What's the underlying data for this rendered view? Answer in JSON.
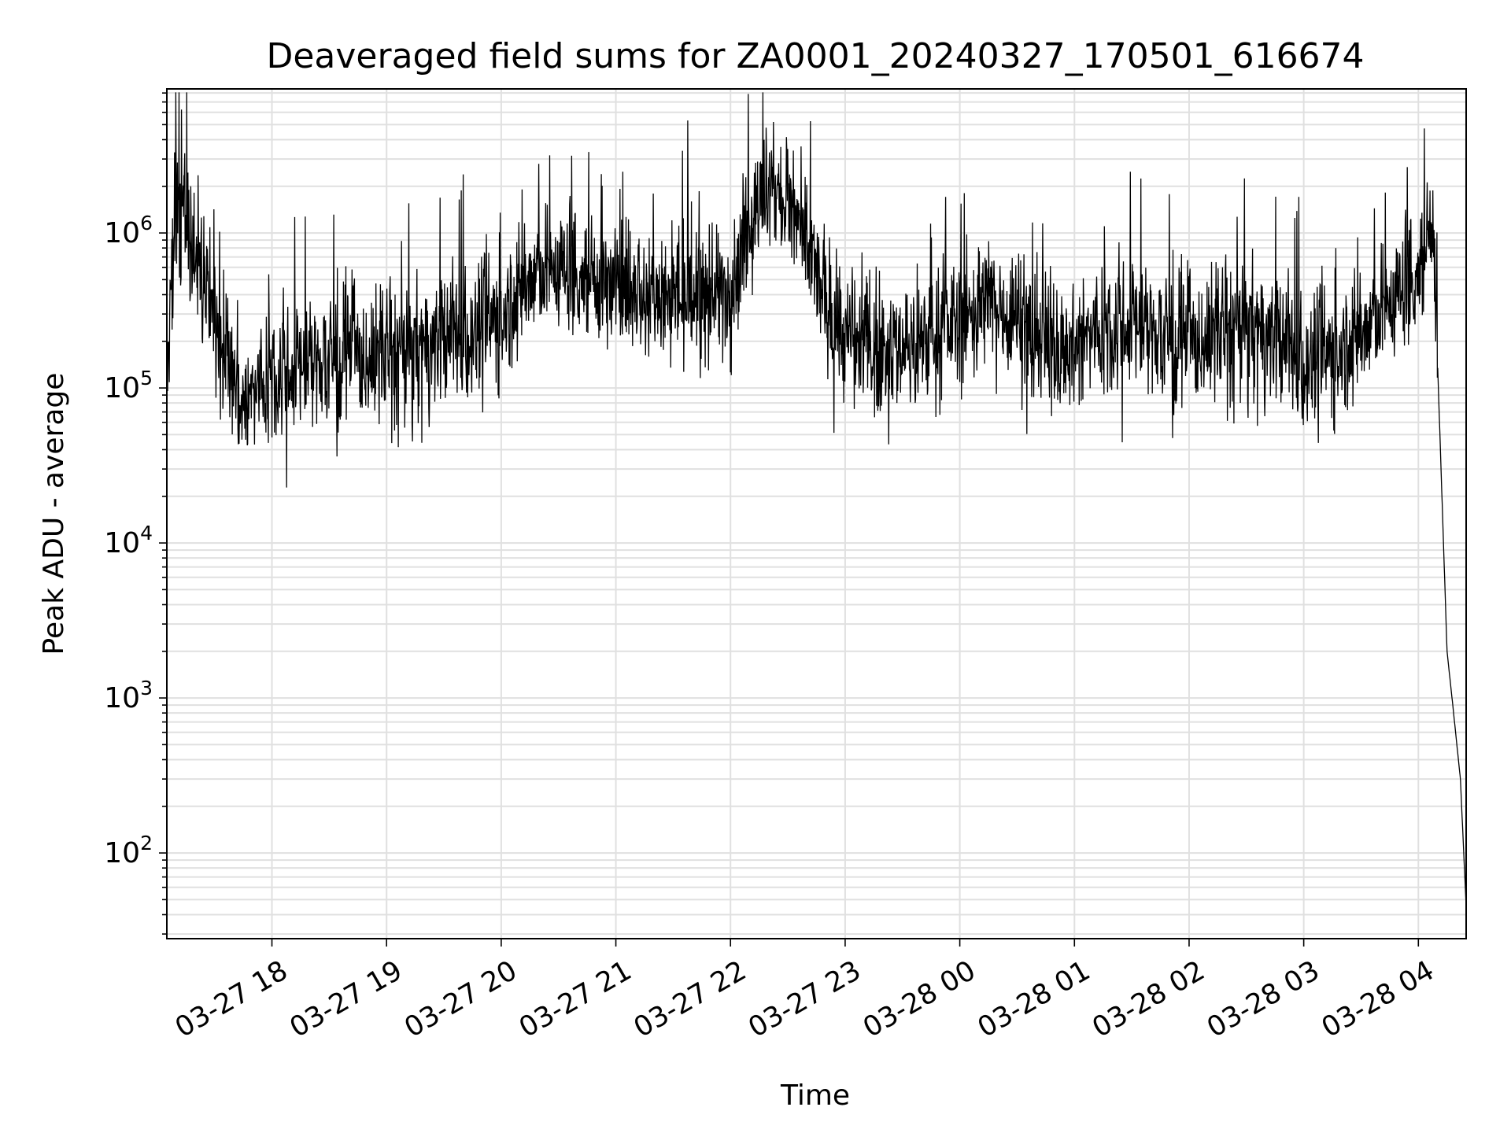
{
  "chart_data": {
    "type": "line",
    "title": "Deaveraged field sums for ZA0001_20240327_170501_616674",
    "xlabel": "Time",
    "ylabel": "Peak ADU - average",
    "yscale": "log",
    "grid": "on (major and minor)",
    "line_color": "#000000",
    "grid_color": "#e0e0e0",
    "xlim": [
      "2024-03-27 17:05",
      "2024-03-28 04:25"
    ],
    "ylim": [
      28,
      8500000
    ],
    "x_ticks": [
      {
        "t": "2024-03-27 18:00",
        "label": "03-27 18"
      },
      {
        "t": "2024-03-27 19:00",
        "label": "03-27 19"
      },
      {
        "t": "2024-03-27 20:00",
        "label": "03-27 20"
      },
      {
        "t": "2024-03-27 21:00",
        "label": "03-27 21"
      },
      {
        "t": "2024-03-27 22:00",
        "label": "03-27 22"
      },
      {
        "t": "2024-03-27 23:00",
        "label": "03-27 23"
      },
      {
        "t": "2024-03-28 00:00",
        "label": "03-28 00"
      },
      {
        "t": "2024-03-28 01:00",
        "label": "03-28 01"
      },
      {
        "t": "2024-03-28 02:00",
        "label": "03-28 02"
      },
      {
        "t": "2024-03-28 03:00",
        "label": "03-28 03"
      },
      {
        "t": "2024-03-28 04:00",
        "label": "03-28 04"
      }
    ],
    "y_ticks": [
      {
        "value": 100,
        "base": "10",
        "exp": "2"
      },
      {
        "value": 1000,
        "base": "10",
        "exp": "3"
      },
      {
        "value": 10000,
        "base": "10",
        "exp": "4"
      },
      {
        "value": 100000,
        "base": "10",
        "exp": "5"
      },
      {
        "value": 1000000,
        "base": "10",
        "exp": "6"
      }
    ],
    "series": [
      {
        "points": [
          [
            "2024-03-27 17:05",
            120000
          ],
          [
            "2024-03-27 17:10",
            1500000
          ],
          [
            "2024-03-27 17:15",
            1200000
          ],
          [
            "2024-03-27 17:20",
            700000
          ],
          [
            "2024-03-27 17:25",
            450000
          ],
          [
            "2024-03-27 17:30",
            280000
          ],
          [
            "2024-03-27 17:35",
            180000
          ],
          [
            "2024-03-27 17:40",
            110000
          ],
          [
            "2024-03-27 17:45",
            80000
          ],
          [
            "2024-03-27 17:50",
            90000
          ],
          [
            "2024-03-27 17:55",
            110000
          ],
          [
            "2024-03-27 18:00",
            130000
          ],
          [
            "2024-03-27 18:10",
            140000
          ],
          [
            "2024-03-27 18:20",
            150000
          ],
          [
            "2024-03-27 18:30",
            150000
          ],
          [
            "2024-03-27 18:40",
            160000
          ],
          [
            "2024-03-27 18:50",
            150000
          ],
          [
            "2024-03-27 19:00",
            170000
          ],
          [
            "2024-03-27 19:10",
            170000
          ],
          [
            "2024-03-27 19:20",
            180000
          ],
          [
            "2024-03-27 19:30",
            200000
          ],
          [
            "2024-03-27 19:40",
            220000
          ],
          [
            "2024-03-27 19:50",
            250000
          ],
          [
            "2024-03-27 20:00",
            300000
          ],
          [
            "2024-03-27 20:15",
            500000
          ],
          [
            "2024-03-27 20:30",
            600000
          ],
          [
            "2024-03-27 20:45",
            550000
          ],
          [
            "2024-03-27 21:00",
            450000
          ],
          [
            "2024-03-27 21:15",
            420000
          ],
          [
            "2024-03-27 21:30",
            400000
          ],
          [
            "2024-03-27 21:45",
            380000
          ],
          [
            "2024-03-27 22:00",
            450000
          ],
          [
            "2024-03-27 22:10",
            1200000
          ],
          [
            "2024-03-27 22:20",
            1800000
          ],
          [
            "2024-03-27 22:30",
            1600000
          ],
          [
            "2024-03-27 22:40",
            800000
          ],
          [
            "2024-03-27 22:50",
            350000
          ],
          [
            "2024-03-27 23:00",
            200000
          ],
          [
            "2024-03-27 23:20",
            180000
          ],
          [
            "2024-03-27 23:40",
            200000
          ],
          [
            "2024-03-28 00:00",
            280000
          ],
          [
            "2024-03-28 00:15",
            350000
          ],
          [
            "2024-03-28 00:30",
            300000
          ],
          [
            "2024-03-28 00:45",
            200000
          ],
          [
            "2024-03-28 01:00",
            180000
          ],
          [
            "2024-03-28 01:15",
            250000
          ],
          [
            "2024-03-28 01:30",
            280000
          ],
          [
            "2024-03-28 01:45",
            220000
          ],
          [
            "2024-03-28 02:00",
            180000
          ],
          [
            "2024-03-28 02:15",
            230000
          ],
          [
            "2024-03-28 02:30",
            250000
          ],
          [
            "2024-03-28 02:45",
            200000
          ],
          [
            "2024-03-28 03:00",
            150000
          ],
          [
            "2024-03-28 03:15",
            170000
          ],
          [
            "2024-03-28 03:30",
            220000
          ],
          [
            "2024-03-28 03:45",
            350000
          ],
          [
            "2024-03-28 04:00",
            600000
          ],
          [
            "2024-03-28 04:05",
            900000
          ],
          [
            "2024-03-28 04:08",
            1400000
          ],
          [
            "2024-03-28 04:10",
            150000
          ],
          [
            "2024-03-28 04:15",
            2000
          ],
          [
            "2024-03-28 04:18",
            900
          ],
          [
            "2024-03-28 04:22",
            300
          ],
          [
            "2024-03-28 04:25",
            45
          ]
        ]
      }
    ]
  }
}
